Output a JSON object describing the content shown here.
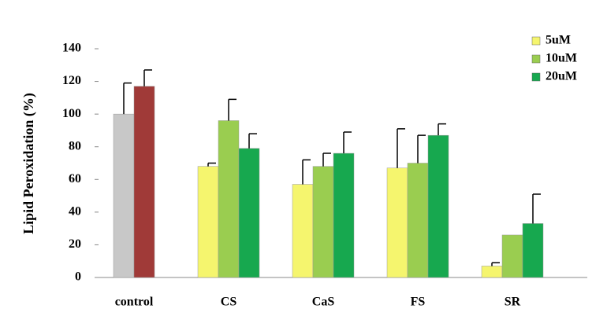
{
  "chart_data": {
    "type": "bar",
    "y_label": "Lipid Peroxidation (%)",
    "categories": [
      "control",
      "CS",
      "CaS",
      "FS",
      "SR"
    ],
    "series": [
      {
        "color": "#c8c8c8",
        "values": [
          100,
          null,
          null,
          null,
          null
        ],
        "errors": [
          19,
          null,
          null,
          null,
          null
        ]
      },
      {
        "color": "#a03a38",
        "values": [
          117,
          null,
          null,
          null,
          null
        ],
        "errors": [
          10,
          null,
          null,
          null,
          null
        ]
      },
      {
        "name": "5uM",
        "color": "#f5f56e",
        "values": [
          null,
          68,
          57,
          67,
          7
        ],
        "errors": [
          null,
          2,
          15,
          24,
          2
        ]
      },
      {
        "name": "10uM",
        "color": "#9acd50",
        "values": [
          null,
          96,
          68,
          70,
          26
        ],
        "errors": [
          null,
          13,
          8,
          17,
          null
        ]
      },
      {
        "name": "20uM",
        "color": "#17a84f",
        "values": [
          null,
          79,
          76,
          87,
          33
        ],
        "errors": [
          null,
          9,
          13,
          7,
          18
        ]
      }
    ],
    "ylim": [
      0,
      140
    ],
    "yticks": [
      0,
      20,
      40,
      60,
      80,
      100,
      120,
      140
    ],
    "grid": false
  }
}
